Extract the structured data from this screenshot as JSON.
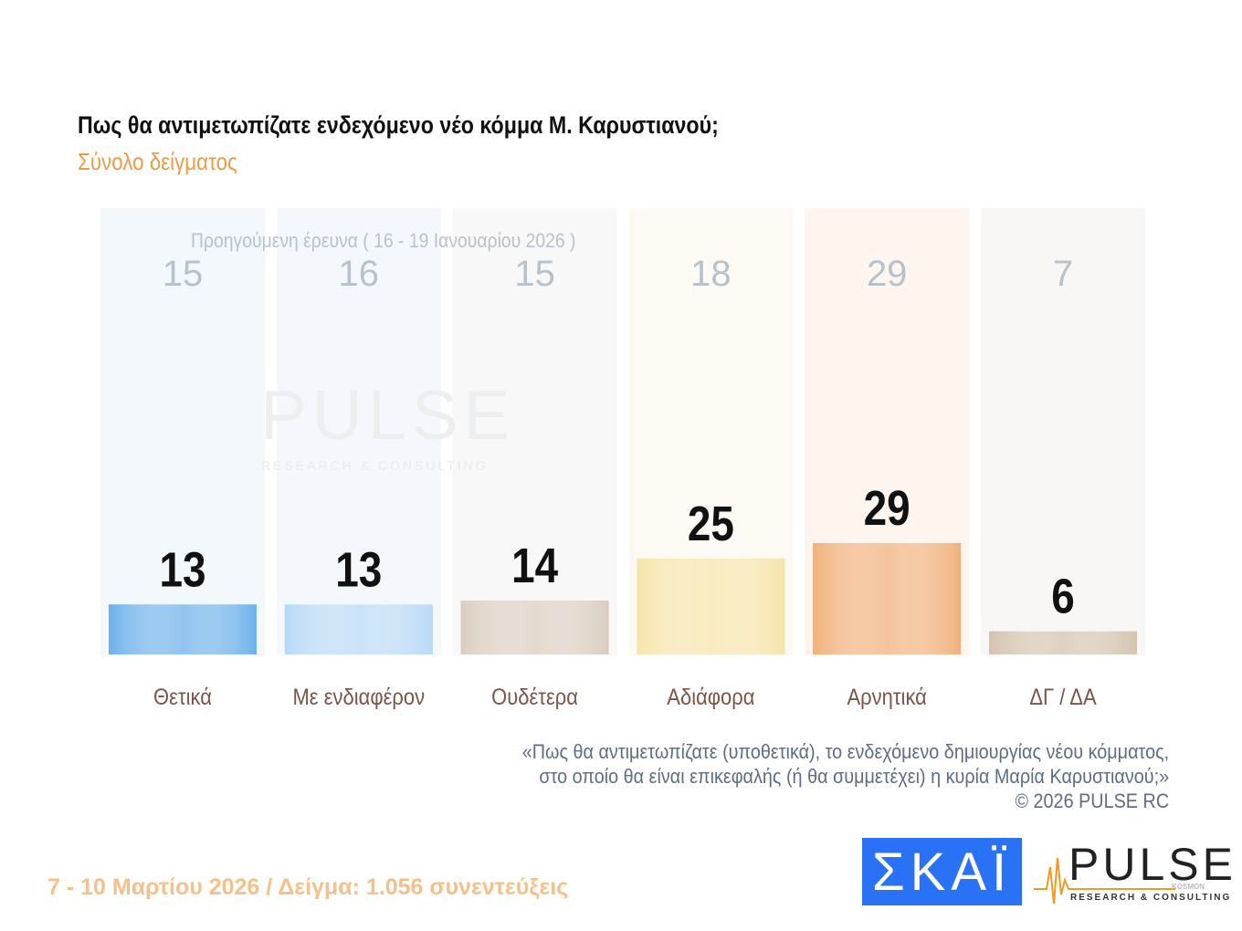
{
  "title": "Πως θα αντιμετωπίζατε ενδεχόμενο νέο κόμμα Μ. Καρυστιανού;",
  "subtitle": "Σύνολο δείγματος",
  "chart_data": {
    "type": "bar",
    "categories": [
      "Θετικά",
      "Με ενδιαφέρον",
      "Ουδέτερα",
      "Αδιάφορα",
      "Αρνητικά",
      "ΔΓ / ΔΑ"
    ],
    "series": [
      {
        "name": "",
        "values": [
          13,
          13,
          14,
          25,
          29,
          6
        ]
      },
      {
        "name": "Προηγούμενη έρευνα ( 16 - 19 Ιανουαρίου 2026 )",
        "values": [
          15,
          16,
          15,
          18,
          29,
          7
        ]
      }
    ],
    "colors": [
      "#6cb0ea",
      "#b7d9f6",
      "#dacdbf",
      "#f6e4a9",
      "#f0b07a",
      "#d3c2ad"
    ],
    "ylim": [
      0,
      29
    ]
  },
  "watermark": {
    "main": "PULSE",
    "sub": "RESEARCH & CONSULTING"
  },
  "question": [
    "«Πως θα αντιμετωπίζατε (υποθετικά), το ενδεχόμενο δημιουργίας νέου κόμματος,",
    "στο οποίο θα είναι επικεφαλής (ή θα συμμετέχει) η κυρία Μαρία Καρυστιανού;»",
    "©  2026  PULSE RC"
  ],
  "footer": "7 - 10  Μαρτίου 2026  /  Δείγμα:  1.056 συνεντεύξεις",
  "logos": {
    "skai": "ΣΚΑΪ",
    "pulse": "PULSE",
    "pulse_sub": "RESEARCH & CONSULTING",
    "pulse_kosmon": "KOSMON"
  }
}
